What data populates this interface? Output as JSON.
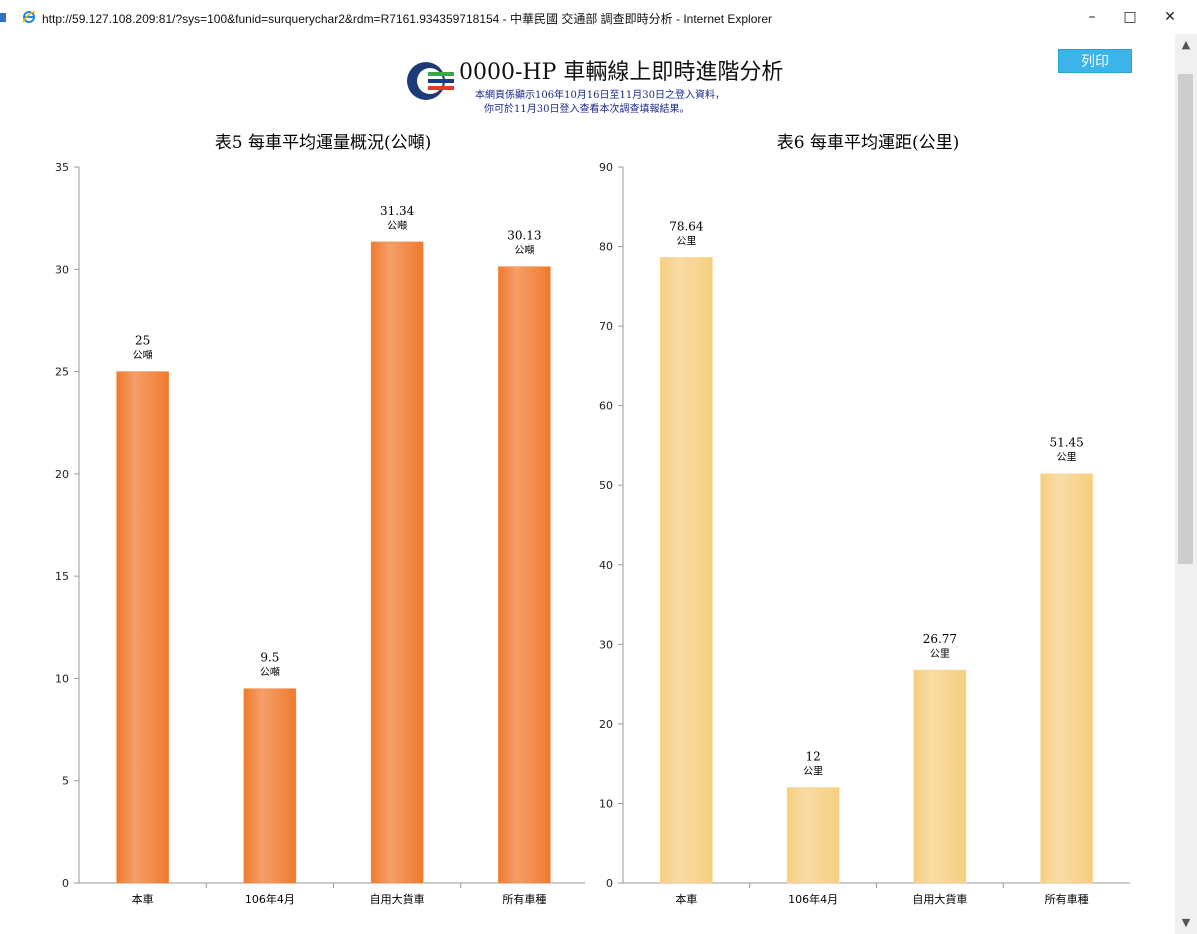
{
  "window": {
    "title": "http://59.127.108.209:81/?sys=100&funid=surquerychar2&rdm=R7161.934359718154 - 中華民國 交通部 調查即時分析 - Internet Explorer",
    "minimize": "–",
    "maximize": "□",
    "close": "✕"
  },
  "header": {
    "title": "0000-HP  車輛線上即時進階分析",
    "notice_line1": "本網頁係顯示106年10月16日至11月30日之登入資料，",
    "notice_line2": "你可於11月30日登入查看本次調查填報結果。",
    "print_label": "列印"
  },
  "colors": {
    "chart1_bar": "#f07a2e",
    "chart2_bar": "#f6cf80",
    "notice": "#1a2a8c",
    "print_button": "#3bb4ea"
  },
  "chart_data": [
    {
      "type": "bar",
      "title": "表5 每車平均運量概況(公噸)",
      "categories": [
        "本車",
        "106年4月",
        "自用大貨車",
        "所有車種"
      ],
      "values": [
        25,
        9.5,
        31.34,
        30.13
      ],
      "value_labels": [
        "25",
        "9.5",
        "31.34",
        "30.13"
      ],
      "unit": "公噸",
      "ylim": [
        0,
        35
      ],
      "yticks": [
        0,
        5,
        10,
        15,
        20,
        25,
        30,
        35
      ],
      "grid": false
    },
    {
      "type": "bar",
      "title": "表6 每車平均運距(公里)",
      "categories": [
        "本車",
        "106年4月",
        "自用大貨車",
        "所有車種"
      ],
      "values": [
        78.64,
        12,
        26.77,
        51.45
      ],
      "value_labels": [
        "78.64",
        "12",
        "26.77",
        "51.45"
      ],
      "unit": "公里",
      "ylim": [
        0,
        90
      ],
      "yticks": [
        0,
        10,
        20,
        30,
        40,
        50,
        60,
        70,
        80,
        90
      ],
      "grid": false
    }
  ]
}
